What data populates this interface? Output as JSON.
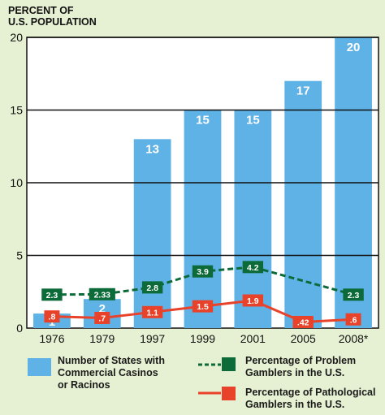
{
  "chart_data": {
    "type": "bar",
    "y_axis_title": [
      "PERCENT OF",
      "U.S. POPULATION"
    ],
    "categories": [
      "1976",
      "1979",
      "1997",
      "1999",
      "2001",
      "2005",
      "2008*"
    ],
    "ylim": [
      0,
      20
    ],
    "yticks": [
      0,
      5,
      10,
      15,
      20
    ],
    "grid": true,
    "legend_position": "bottom",
    "colors": {
      "background": "#e6f0d2",
      "bars": "#5fb2e6",
      "problem": "#0c6b38",
      "pathological": "#e8432a"
    },
    "series": [
      {
        "name": "Number of States with Commercial Casinos or Racinos",
        "legend_lines": [
          "Number of States with",
          "Commercial Casinos",
          "or Racinos"
        ],
        "kind": "bar",
        "values": [
          1,
          2,
          13,
          15,
          15,
          17,
          20
        ],
        "labels": [
          "1",
          "2",
          "13",
          "15",
          "15",
          "17",
          "20"
        ]
      },
      {
        "name": "Percentage of Problem Gamblers in the U.S.",
        "legend_lines": [
          "Percentage of Problem",
          "Gamblers in the U.S."
        ],
        "kind": "dashed-line",
        "values": [
          2.3,
          2.33,
          2.8,
          3.9,
          4.2,
          null,
          2.3
        ],
        "labels": [
          "2.3",
          "2.33",
          "2.8",
          "3.9",
          "4.2",
          null,
          "2.3"
        ]
      },
      {
        "name": "Percentage of Pathological Gamblers in the U.S.",
        "legend_lines": [
          "Percentage of Pathological",
          "Gamblers in the U.S."
        ],
        "kind": "line",
        "values": [
          0.8,
          0.7,
          1.1,
          1.5,
          1.9,
          0.42,
          0.6
        ],
        "labels": [
          ".8",
          ".7",
          "1.1",
          "1.5",
          "1.9",
          ".42",
          ".6"
        ]
      }
    ]
  }
}
